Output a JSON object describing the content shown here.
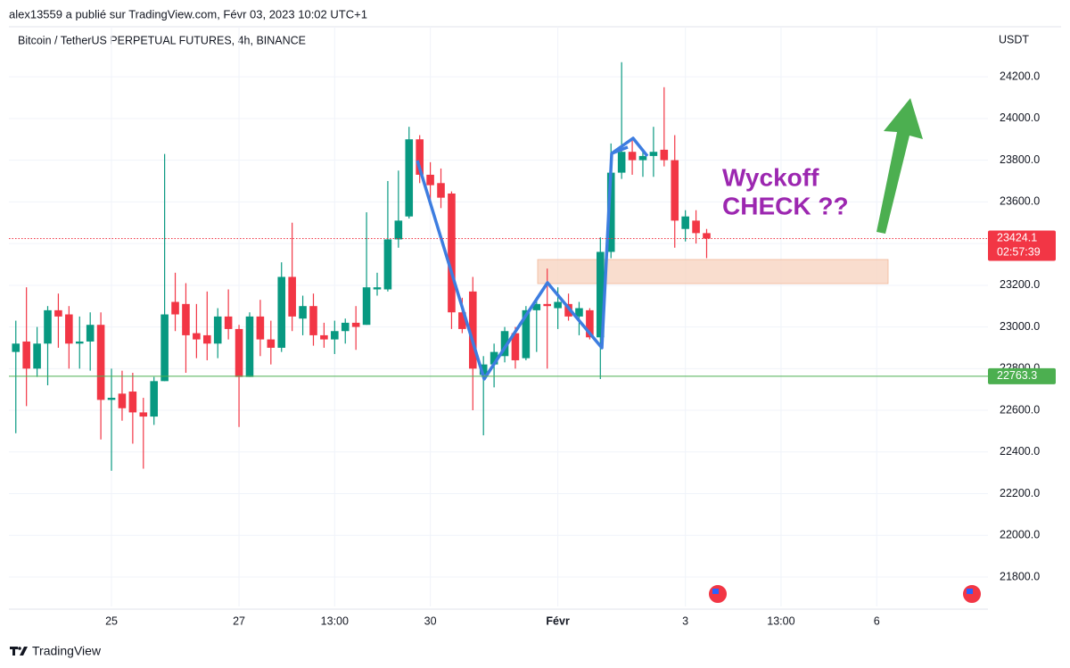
{
  "header": {
    "published": "alex13559 a publié sur TradingView.com, Févr 03, 2023 10:02 UTC+1",
    "brand": "TradingView"
  },
  "chart_data": {
    "type": "candlestick",
    "title": "Bitcoin / TetherUS PERPETUAL FUTURES, 4h, BINANCE",
    "y_axis_label": "USDT",
    "annotation": "Wyckoff CHECK ??",
    "up_color": "#089981",
    "down_color": "#f23645",
    "xlim": [
      -0.65,
      91.47
    ],
    "xticks": [
      {
        "value": 9,
        "label": "25"
      },
      {
        "value": 21,
        "label": "27"
      },
      {
        "value": 30,
        "label": "13:00"
      },
      {
        "value": 39,
        "label": "30"
      },
      {
        "value": 51,
        "label": "Févr"
      },
      {
        "value": 63,
        "label": "3"
      },
      {
        "value": 72,
        "label": "13:00"
      },
      {
        "value": 81,
        "label": "6"
      }
    ],
    "ylim": [
      21659,
      24440
    ],
    "yticks": [
      {
        "value": 21800,
        "label": "21800.0"
      },
      {
        "value": 22000,
        "label": "22000.0"
      },
      {
        "value": 22200,
        "label": "22200.0"
      },
      {
        "value": 22400,
        "label": "22400.0"
      },
      {
        "value": 22600,
        "label": "22600.0"
      },
      {
        "value": 22800,
        "label": "22800.0"
      },
      {
        "value": 23000,
        "label": "23000.0"
      },
      {
        "value": 23200,
        "label": "23200.0"
      },
      {
        "value": 23400,
        "label": "23400.0"
      },
      {
        "value": 23600,
        "label": "23600.0"
      },
      {
        "value": 23800,
        "label": "23800.0"
      },
      {
        "value": 24000,
        "label": "24000.0"
      },
      {
        "value": 24200,
        "label": "24200.0"
      }
    ],
    "grid": true,
    "price_lines": [
      {
        "value": 23424.1,
        "countdown": "02:57:39",
        "color": "#f23645",
        "style": "dotted"
      },
      {
        "value": 22763.3,
        "color": "#4caf50",
        "style": "solid"
      }
    ],
    "open": [
      22880,
      22930,
      22800,
      22920,
      23080,
      23060,
      22920,
      22930,
      23010,
      22650,
      22680,
      22690,
      22590,
      22570,
      22740,
      23120,
      23110,
      22970,
      22960,
      22920,
      23050,
      22990,
      22760,
      23050,
      22940,
      22900,
      23240,
      23040,
      23100,
      22960,
      22940,
      22980,
      23020,
      23010,
      23180,
      23180,
      23420,
      23530,
      23900,
      23730,
      23690,
      23640,
      23070,
      23170,
      22770,
      22820,
      22860,
      22970,
      22850,
      23080,
      23110,
      23090,
      23110,
      23050,
      23080,
      22950,
      23360,
      23740,
      23840,
      23800,
      23820,
      23850,
      23800,
      23470,
      23510,
      23450
    ],
    "high": [
      23030,
      23190,
      23000,
      23100,
      23160,
      23100,
      23050,
      23070,
      23070,
      22800,
      22790,
      22780,
      22660,
      22760,
      23830,
      23260,
      23210,
      23110,
      23170,
      23090,
      23180,
      23010,
      23070,
      23130,
      23030,
      23310,
      23500,
      23150,
      23160,
      23020,
      23030,
      23040,
      23100,
      23550,
      23260,
      23700,
      23750,
      23960,
      23920,
      23790,
      23760,
      23650,
      23140,
      23240,
      22860,
      22920,
      23000,
      23000,
      23100,
      23140,
      23280,
      23190,
      23160,
      23120,
      23090,
      23430,
      23880,
      24270,
      23900,
      23850,
      23960,
      24150,
      23920,
      23560,
      23560,
      23470
    ],
    "low": [
      22490,
      22620,
      22760,
      22720,
      22900,
      22800,
      22800,
      22790,
      22460,
      22310,
      22550,
      22440,
      22320,
      22530,
      22740,
      22980,
      22780,
      22850,
      22840,
      22850,
      22940,
      22520,
      22760,
      22860,
      22820,
      22880,
      22980,
      22960,
      22910,
      22900,
      22870,
      22920,
      22890,
      23010,
      23150,
      23170,
      23380,
      23520,
      23690,
      23610,
      23570,
      22990,
      22970,
      22600,
      22480,
      22710,
      22830,
      22800,
      22840,
      22880,
      22800,
      22990,
      23030,
      22960,
      22940,
      22750,
      23330,
      23710,
      23730,
      23720,
      23720,
      23770,
      23380,
      23410,
      23400,
      23330
    ],
    "close": [
      22920,
      22800,
      22920,
      23080,
      23050,
      22920,
      22930,
      23010,
      22650,
      22660,
      22610,
      22590,
      22570,
      22740,
      23060,
      23060,
      22960,
      22940,
      22920,
      23050,
      22990,
      22760,
      23050,
      22940,
      22900,
      23240,
      23050,
      23100,
      22960,
      22940,
      22980,
      23020,
      23000,
      23190,
      23190,
      23420,
      23510,
      23900,
      23730,
      23680,
      23620,
      23070,
      22990,
      22800,
      22820,
      22880,
      22980,
      22840,
      23080,
      23110,
      23100,
      23120,
      23050,
      23090,
      22950,
      23360,
      23740,
      23840,
      23800,
      23820,
      23840,
      23800,
      23510,
      23530,
      23450,
      23424.1
    ]
  }
}
